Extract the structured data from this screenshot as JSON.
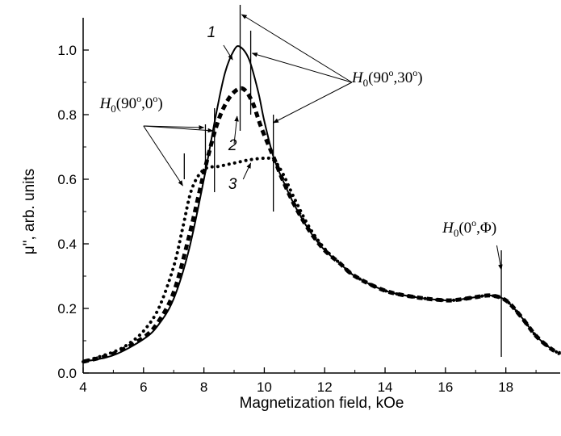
{
  "chart_data": {
    "type": "line",
    "xlabel": "Magnetization field, kOe",
    "ylabel": "μ\", arb. units",
    "xlim": [
      4,
      19.8
    ],
    "ylim": [
      0,
      1.1
    ],
    "x_ticks": [
      4,
      6,
      8,
      10,
      12,
      14,
      16,
      18
    ],
    "y_ticks": [
      0.0,
      0.2,
      0.4,
      0.6,
      0.8,
      1.0
    ],
    "y_tick_labels": [
      "0.0",
      "0.2",
      "0.4",
      "0.6",
      "0.8",
      "1.0"
    ],
    "grid": false,
    "series": [
      {
        "name": "1",
        "style": "solid",
        "x": [
          4.0,
          5.0,
          6.0,
          6.5,
          7.0,
          7.5,
          8.0,
          8.4,
          8.7,
          9.0,
          9.2,
          9.5,
          9.8,
          10.0,
          10.3,
          10.6,
          11.0,
          11.5,
          12.0,
          12.5,
          13.0,
          14.0,
          15.0,
          16.0,
          16.5,
          17.0,
          17.5,
          18.0,
          18.5,
          19.0,
          19.5,
          19.8
        ],
        "y": [
          0.035,
          0.055,
          0.105,
          0.15,
          0.23,
          0.38,
          0.6,
          0.8,
          0.93,
          1.0,
          1.01,
          0.97,
          0.87,
          0.78,
          0.67,
          0.6,
          0.52,
          0.44,
          0.38,
          0.34,
          0.3,
          0.255,
          0.235,
          0.225,
          0.228,
          0.235,
          0.24,
          0.225,
          0.175,
          0.115,
          0.075,
          0.06
        ]
      },
      {
        "name": "2",
        "style": "dashed",
        "x": [
          4.0,
          5.0,
          6.0,
          6.5,
          7.0,
          7.5,
          8.0,
          8.4,
          8.7,
          9.0,
          9.3,
          9.6,
          9.9,
          10.3,
          10.6,
          11.0,
          11.5,
          12.0,
          12.5,
          13.0,
          14.0,
          15.0,
          16.0,
          16.5,
          17.0,
          17.5,
          18.0,
          18.5,
          19.0,
          19.5,
          19.8
        ],
        "y": [
          0.035,
          0.06,
          0.11,
          0.16,
          0.25,
          0.42,
          0.62,
          0.76,
          0.83,
          0.87,
          0.88,
          0.84,
          0.76,
          0.67,
          0.6,
          0.52,
          0.44,
          0.38,
          0.34,
          0.3,
          0.255,
          0.235,
          0.225,
          0.228,
          0.235,
          0.24,
          0.225,
          0.175,
          0.115,
          0.075,
          0.06
        ]
      },
      {
        "name": "3",
        "style": "dotted",
        "x": [
          4.0,
          5.0,
          5.5,
          6.0,
          6.5,
          7.0,
          7.3,
          7.6,
          8.0,
          8.5,
          9.0,
          9.5,
          10.0,
          10.3,
          10.6,
          11.0,
          11.5,
          12.0,
          12.5,
          13.0,
          14.0,
          15.0,
          16.0,
          16.5,
          17.0,
          17.5,
          18.0,
          18.5,
          19.0,
          19.5,
          19.8
        ],
        "y": [
          0.035,
          0.065,
          0.09,
          0.13,
          0.2,
          0.33,
          0.45,
          0.57,
          0.63,
          0.64,
          0.65,
          0.66,
          0.665,
          0.66,
          0.62,
          0.54,
          0.45,
          0.385,
          0.34,
          0.3,
          0.255,
          0.235,
          0.225,
          0.228,
          0.235,
          0.24,
          0.225,
          0.175,
          0.115,
          0.075,
          0.06
        ]
      }
    ],
    "markers": [
      {
        "x": 7.35,
        "y0": 0.6,
        "y1": 0.68
      },
      {
        "x": 8.05,
        "y0": 0.62,
        "y1": 0.77
      },
      {
        "x": 8.35,
        "y0": 0.56,
        "y1": 0.82
      },
      {
        "x": 9.2,
        "y0": 0.75,
        "y1": 1.14
      },
      {
        "x": 9.55,
        "y0": 0.8,
        "y1": 1.06
      },
      {
        "x": 10.3,
        "y0": 0.5,
        "y1": 0.8
      },
      {
        "x": 17.85,
        "y0": 0.05,
        "y1": 0.38
      }
    ],
    "annotations": [
      {
        "id": "h0-90-0",
        "base": "H",
        "sub": "0",
        "args": "(90",
        "sup1": "o",
        "mid": ",0",
        "sup2": "o",
        "end": ")",
        "x": 4.55,
        "y": 0.82
      },
      {
        "id": "h0-90-30",
        "base": "H",
        "sub": "0",
        "args": "(90",
        "sup1": "o",
        "mid": ",30",
        "sup2": "o",
        "end": ")",
        "x": 12.9,
        "y": 0.9
      },
      {
        "id": "h0-0-phi",
        "base": "H",
        "sub": "0",
        "args": "(0",
        "sup1": "o",
        "mid": ",Φ",
        "sup2": "",
        "end": ")",
        "x": 15.9,
        "y": 0.435
      }
    ],
    "curve_labels": [
      {
        "text": "1",
        "x": 8.25,
        "y": 1.04
      },
      {
        "text": "2",
        "x": 8.95,
        "y": 0.69
      },
      {
        "text": "3",
        "x": 8.95,
        "y": 0.57
      }
    ],
    "arrows": [
      {
        "from": [
          6.0,
          0.765
        ],
        "to": [
          7.3,
          0.58
        ]
      },
      {
        "from": [
          6.0,
          0.765
        ],
        "to": [
          8.0,
          0.76
        ]
      },
      {
        "from": [
          6.0,
          0.765
        ],
        "to": [
          8.3,
          0.75
        ]
      },
      {
        "from": [
          12.9,
          0.9
        ],
        "to": [
          9.25,
          1.11
        ]
      },
      {
        "from": [
          12.9,
          0.9
        ],
        "to": [
          9.6,
          0.99
        ]
      },
      {
        "from": [
          12.9,
          0.9
        ],
        "to": [
          10.3,
          0.775
        ]
      },
      {
        "from": [
          8.65,
          1.015
        ],
        "to": [
          8.95,
          0.97
        ]
      },
      {
        "from": [
          9.0,
          0.71
        ],
        "to": [
          9.1,
          0.795
        ]
      },
      {
        "from": [
          9.3,
          0.6
        ],
        "to": [
          9.55,
          0.65
        ]
      },
      {
        "from": [
          17.7,
          0.395
        ],
        "to": [
          17.85,
          0.32
        ]
      }
    ]
  }
}
